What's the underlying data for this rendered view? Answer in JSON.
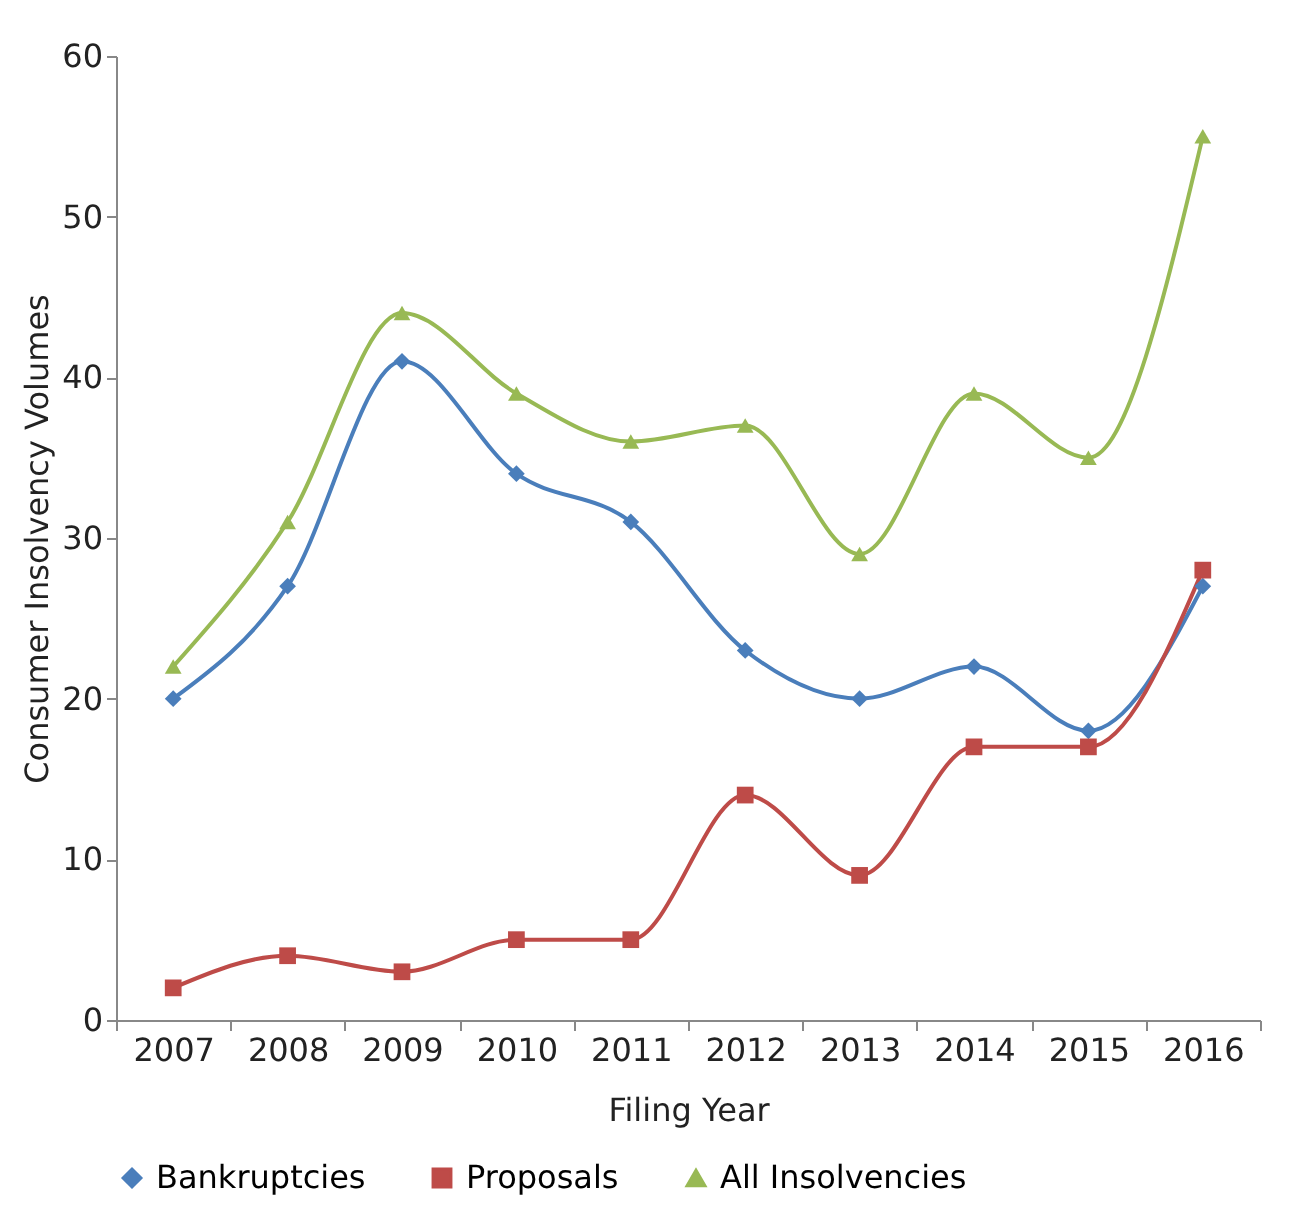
{
  "chart_data": {
    "type": "line",
    "xlabel": "Filing Year",
    "ylabel": "Consumer Insolvency Volumes",
    "categories": [
      "2007",
      "2008",
      "2009",
      "2010",
      "2011",
      "2012",
      "2013",
      "2014",
      "2015",
      "2016"
    ],
    "series": [
      {
        "name": "Bankruptcies",
        "color": "#4a7ebb",
        "marker": "diamond",
        "values": [
          20,
          27,
          41,
          34,
          31,
          23,
          20,
          22,
          18,
          27
        ]
      },
      {
        "name": "Proposals",
        "color": "#be4b48",
        "marker": "square",
        "values": [
          2,
          4,
          3,
          5,
          5,
          14,
          9,
          17,
          17,
          28
        ]
      },
      {
        "name": "All Insolvencies",
        "color": "#98b954",
        "marker": "triangle",
        "values": [
          22,
          31,
          44,
          39,
          36,
          37,
          29,
          39,
          35,
          55
        ]
      }
    ],
    "ylim": [
      0,
      60
    ],
    "yticks": [
      0,
      10,
      20,
      30,
      40,
      50,
      60
    ],
    "grid": false,
    "legend": "bottom",
    "line_style": "solid"
  }
}
